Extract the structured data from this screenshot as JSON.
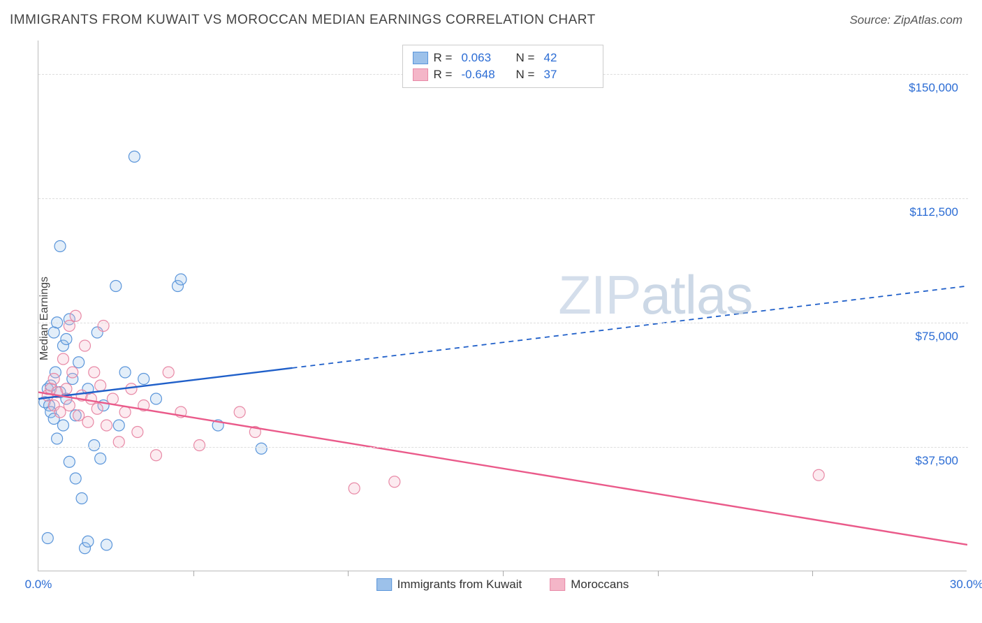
{
  "header": {
    "title": "IMMIGRANTS FROM KUWAIT VS MOROCCAN MEDIAN EARNINGS CORRELATION CHART",
    "source": "Source: ZipAtlas.com"
  },
  "watermark": {
    "part1": "ZIP",
    "part2": "atlas"
  },
  "chart": {
    "type": "scatter",
    "ylabel": "Median Earnings",
    "xlim": [
      0,
      30
    ],
    "ylim": [
      0,
      160000
    ],
    "xtick_positions": [
      0,
      5,
      10,
      15,
      20,
      25,
      30
    ],
    "xlabels": {
      "min": "0.0%",
      "max": "30.0%"
    },
    "yticks": [
      {
        "value": 37500,
        "label": "$37,500"
      },
      {
        "value": 75000,
        "label": "$75,000"
      },
      {
        "value": 112500,
        "label": "$112,500"
      },
      {
        "value": 150000,
        "label": "$150,000"
      }
    ],
    "background_color": "#ffffff",
    "grid_color": "#dddddd",
    "axis_color": "#bbbbbb",
    "label_color": "#444444",
    "tick_label_color": "#2b6cd4",
    "marker_radius": 8,
    "marker_stroke_width": 1.2,
    "marker_fill_opacity": 0.28,
    "series": [
      {
        "id": "kuwait",
        "name": "Immigrants from Kuwait",
        "color_stroke": "#5a95da",
        "color_fill": "#9cc1ea",
        "r_label": "R =",
        "r_value": "0.063",
        "n_label": "N =",
        "n_value": "42",
        "trend": {
          "solid_x_end": 8.2,
          "y_start": 52000,
          "y_end": 86000,
          "line_color": "#1f5fc9",
          "line_width": 2.4,
          "dash": "7 6"
        },
        "points": [
          [
            0.2,
            51000
          ],
          [
            0.3,
            55000
          ],
          [
            0.35,
            50000
          ],
          [
            0.4,
            56000
          ],
          [
            0.4,
            48000
          ],
          [
            0.5,
            72000
          ],
          [
            0.5,
            46000
          ],
          [
            0.55,
            60000
          ],
          [
            0.6,
            75000
          ],
          [
            0.6,
            40000
          ],
          [
            0.7,
            54000
          ],
          [
            0.7,
            98000
          ],
          [
            0.8,
            68000
          ],
          [
            0.8,
            44000
          ],
          [
            0.9,
            70000
          ],
          [
            0.9,
            52000
          ],
          [
            1.0,
            76000
          ],
          [
            1.0,
            33000
          ],
          [
            1.1,
            58000
          ],
          [
            1.2,
            28000
          ],
          [
            1.2,
            47000
          ],
          [
            1.3,
            63000
          ],
          [
            1.4,
            22000
          ],
          [
            1.5,
            7000
          ],
          [
            1.6,
            9000
          ],
          [
            1.6,
            55000
          ],
          [
            1.8,
            38000
          ],
          [
            1.9,
            72000
          ],
          [
            2.0,
            34000
          ],
          [
            2.1,
            50000
          ],
          [
            2.2,
            8000
          ],
          [
            2.5,
            86000
          ],
          [
            2.6,
            44000
          ],
          [
            2.8,
            60000
          ],
          [
            3.1,
            125000
          ],
          [
            3.4,
            58000
          ],
          [
            3.8,
            52000
          ],
          [
            4.5,
            86000
          ],
          [
            4.6,
            88000
          ],
          [
            5.8,
            44000
          ],
          [
            7.2,
            37000
          ],
          [
            0.3,
            10000
          ]
        ]
      },
      {
        "id": "moroccans",
        "name": "Moroccans",
        "color_stroke": "#e889a6",
        "color_fill": "#f4b6c8",
        "r_label": "R =",
        "r_value": "-0.648",
        "n_label": "N =",
        "n_value": "37",
        "trend": {
          "solid_x_end": 30,
          "y_start": 54000,
          "y_end": 8000,
          "line_color": "#ea5a8a",
          "line_width": 2.4,
          "dash": null
        },
        "points": [
          [
            0.3,
            53000
          ],
          [
            0.4,
            55000
          ],
          [
            0.5,
            50000
          ],
          [
            0.5,
            58000
          ],
          [
            0.6,
            54000
          ],
          [
            0.7,
            48000
          ],
          [
            0.8,
            64000
          ],
          [
            0.9,
            55000
          ],
          [
            1.0,
            74000
          ],
          [
            1.0,
            50000
          ],
          [
            1.1,
            60000
          ],
          [
            1.2,
            77000
          ],
          [
            1.3,
            47000
          ],
          [
            1.4,
            53000
          ],
          [
            1.5,
            68000
          ],
          [
            1.6,
            45000
          ],
          [
            1.7,
            52000
          ],
          [
            1.8,
            60000
          ],
          [
            1.9,
            49000
          ],
          [
            2.0,
            56000
          ],
          [
            2.1,
            74000
          ],
          [
            2.2,
            44000
          ],
          [
            2.4,
            52000
          ],
          [
            2.6,
            39000
          ],
          [
            2.8,
            48000
          ],
          [
            3.0,
            55000
          ],
          [
            3.2,
            42000
          ],
          [
            3.4,
            50000
          ],
          [
            3.8,
            35000
          ],
          [
            4.2,
            60000
          ],
          [
            4.6,
            48000
          ],
          [
            5.2,
            38000
          ],
          [
            6.5,
            48000
          ],
          [
            7.0,
            42000
          ],
          [
            10.2,
            25000
          ],
          [
            11.5,
            27000
          ],
          [
            25.2,
            29000
          ]
        ]
      }
    ]
  },
  "legend_bottom": [
    {
      "label": "Immigrants from Kuwait",
      "fill": "#9cc1ea",
      "stroke": "#5a95da"
    },
    {
      "label": "Moroccans",
      "fill": "#f4b6c8",
      "stroke": "#e889a6"
    }
  ]
}
